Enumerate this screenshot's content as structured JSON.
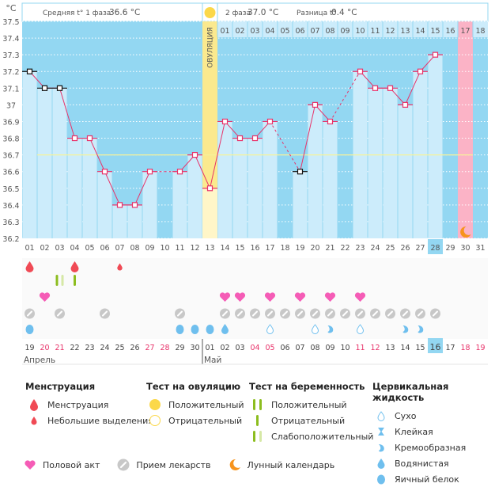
{
  "header": {
    "unit": "°C",
    "phase1_label": "Средняя t° 1 фаза",
    "phase1_value": "36.6 °C",
    "phase2_label": "2 фаза",
    "phase2_value": "37.0 °C",
    "diff_label": "Разница t°",
    "diff_value": "0.4 °C",
    "ovulation_label": "ОВУЛЯЦИЯ"
  },
  "colors": {
    "bg_blue": "#93d7f2",
    "bar_light": "#ccecfb",
    "ovulation_yellow": "#fbe98e",
    "period_pink": "#fbb3c6",
    "line_red": "#e8336a",
    "coverline": "#f6f29a",
    "holiday_red": "#e8336a"
  },
  "chart_data": {
    "type": "line",
    "title": "",
    "xlabel": "",
    "ylabel": "°C",
    "ylim": [
      36.2,
      37.5
    ],
    "yticks": [
      "37.5",
      "37.4",
      "37.3",
      "37.2",
      "37.1",
      "37",
      "36.9",
      "36.8",
      "36.7",
      "36.6",
      "36.5",
      "36.4",
      "36.3",
      "36.2"
    ],
    "cycle_days": [
      "01",
      "02",
      "03",
      "04",
      "05",
      "06",
      "07",
      "08",
      "09",
      "10",
      "11",
      "12",
      "13",
      "14",
      "15",
      "16",
      "17",
      "18",
      "19",
      "20",
      "21",
      "22",
      "23",
      "24",
      "25",
      "26",
      "27",
      "28",
      "29",
      "30",
      "31"
    ],
    "post_ovulation_days": [
      "01",
      "02",
      "03",
      "04",
      "05",
      "06",
      "07",
      "08",
      "09",
      "10",
      "11",
      "12",
      "13",
      "14",
      "15",
      "16",
      "17",
      "18"
    ],
    "temperatures": [
      37.2,
      37.1,
      37.1,
      36.8,
      36.8,
      36.6,
      36.4,
      36.4,
      36.6,
      null,
      36.6,
      36.7,
      36.5,
      36.9,
      36.8,
      36.8,
      36.9,
      null,
      36.6,
      37.0,
      36.9,
      null,
      37.2,
      37.1,
      37.1,
      37.0,
      37.2,
      37.3,
      null,
      null,
      null
    ],
    "excluded_points": [
      1,
      2,
      3,
      19
    ],
    "coverline": 36.7,
    "ovulation_day": 13,
    "expected_period_day": 30,
    "moon_day": 30,
    "today_cycle_day": "28",
    "grid": true
  },
  "calendar": {
    "dates": [
      "19",
      "20",
      "21",
      "22",
      "23",
      "24",
      "25",
      "26",
      "27",
      "28",
      "29",
      "30",
      "01",
      "02",
      "03",
      "04",
      "05",
      "06",
      "07",
      "08",
      "09",
      "10",
      "11",
      "12",
      "13",
      "14",
      "15",
      "16",
      "17",
      "18",
      "19"
    ],
    "weekend_indices": [
      1,
      2,
      8,
      9,
      15,
      16,
      22,
      23,
      29,
      30
    ],
    "today_index": 27,
    "months": [
      {
        "label": "Апрель",
        "start": 0
      },
      {
        "label": "Май",
        "start": 12
      }
    ]
  },
  "icons": {
    "menstruation": [
      {
        "day": 1,
        "type": "heavy"
      },
      {
        "day": 4,
        "type": "heavy"
      },
      {
        "day": 7,
        "type": "light"
      }
    ],
    "pregnancy_test": [
      {
        "day": 3,
        "type": "weak-positive"
      },
      {
        "day": 4,
        "type": "negative"
      }
    ],
    "intercourse": [
      2,
      14,
      15,
      17,
      19,
      21,
      23
    ],
    "medication": [
      1,
      3,
      6,
      11,
      14,
      15,
      16,
      17,
      18,
      19,
      20,
      21,
      22,
      23,
      24,
      25,
      26,
      27,
      28
    ],
    "cervical_fluid": [
      {
        "day": 1,
        "type": "eggwhite"
      },
      {
        "day": 11,
        "type": "eggwhite"
      },
      {
        "day": 12,
        "type": "eggwhite"
      },
      {
        "day": 13,
        "type": "eggwhite"
      },
      {
        "day": 14,
        "type": "watery"
      },
      {
        "day": 17,
        "type": "dry"
      },
      {
        "day": 20,
        "type": "dry"
      },
      {
        "day": 21,
        "type": "creamy"
      },
      {
        "day": 23,
        "type": "dry"
      },
      {
        "day": 26,
        "type": "creamy"
      },
      {
        "day": 27,
        "type": "creamy"
      }
    ]
  },
  "legend": {
    "menstruation": {
      "title": "Менструация",
      "items": [
        "Менструация",
        "Небольшие выделения"
      ]
    },
    "ovulation_test": {
      "title": "Тест на овуляцию",
      "items": [
        "Положительный",
        "Отрицательный"
      ]
    },
    "pregnancy_test": {
      "title": "Тест на беременность",
      "items": [
        "Положительный",
        "Отрицательный",
        "Слабоположительный"
      ]
    },
    "cervical_fluid": {
      "title": "Цервикальная жидкость",
      "items": [
        "Сухо",
        "Клейкая",
        "Кремообразная",
        "Водянистая",
        "Яичный белок"
      ]
    },
    "bottom": [
      "Половой акт",
      "Прием лекарств",
      "Лунный календарь"
    ]
  }
}
